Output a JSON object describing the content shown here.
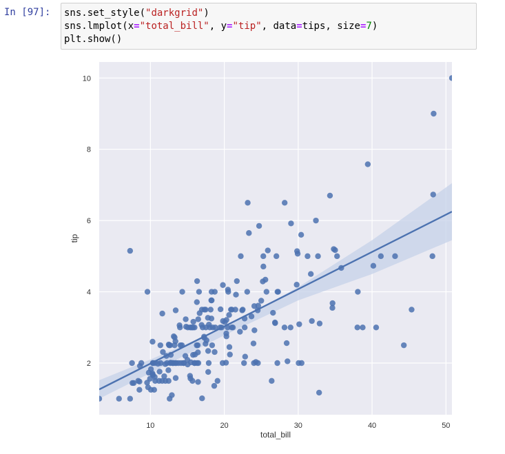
{
  "cell": {
    "prompt": "In [97]:",
    "code": {
      "line1": {
        "fn": "sns.set_style(",
        "arg": "\"darkgrid\"",
        "close": ")"
      },
      "line2": {
        "fn": "sns.lmplot(x",
        "eq": "=",
        "x_val": "\"total_bill\"",
        "sep1": ", y",
        "y_val": "\"tip\"",
        "sep2": ", data",
        "data_val": "tips",
        "sep3": ", size",
        "size_val": "7",
        "close": ")"
      },
      "line3": "plt.show()"
    }
  },
  "colors": {
    "plot_bg": "#eaeaf2",
    "grid": "#ffffff",
    "points": "#4c72b0",
    "line": "#4c72b0",
    "band": "#c6d2e8"
  },
  "chart_data": {
    "type": "scatter",
    "title": "",
    "xlabel": "total_bill",
    "ylabel": "tip",
    "xlim": [
      3.07,
      50.81
    ],
    "ylim": [
      0.55,
      10.45
    ],
    "xticks": [
      10,
      20,
      30,
      40,
      50
    ],
    "yticks": [
      2,
      4,
      6,
      8,
      10
    ],
    "grid": true,
    "regression": {
      "x": [
        3.07,
        50.81
      ],
      "y": [
        1.26,
        6.25
      ]
    },
    "confidence_band": {
      "x": [
        3.07,
        10,
        20,
        30,
        40,
        50.81
      ],
      "upper": [
        1.52,
        2.1,
        3.0,
        4.13,
        5.45,
        7.05
      ],
      "lower": [
        1.0,
        1.72,
        2.78,
        3.76,
        4.5,
        5.45
      ]
    },
    "points": [
      [
        3.07,
        1.0
      ],
      [
        5.75,
        1.0
      ],
      [
        7.25,
        1.0
      ],
      [
        7.25,
        5.15
      ],
      [
        7.51,
        2.0
      ],
      [
        7.56,
        1.44
      ],
      [
        7.74,
        1.44
      ],
      [
        8.35,
        1.5
      ],
      [
        8.51,
        1.25
      ],
      [
        8.52,
        1.48
      ],
      [
        8.58,
        1.92
      ],
      [
        8.77,
        2.0
      ],
      [
        9.55,
        1.45
      ],
      [
        9.6,
        4.0
      ],
      [
        9.68,
        1.32
      ],
      [
        9.78,
        1.73
      ],
      [
        9.94,
        1.56
      ],
      [
        10.07,
        1.25
      ],
      [
        10.07,
        1.83
      ],
      [
        10.27,
        1.71
      ],
      [
        10.29,
        2.6
      ],
      [
        10.33,
        1.67
      ],
      [
        10.33,
        2.0
      ],
      [
        10.34,
        1.66
      ],
      [
        10.34,
        2.0
      ],
      [
        10.51,
        1.25
      ],
      [
        10.59,
        1.61
      ],
      [
        10.63,
        2.0
      ],
      [
        10.65,
        1.5
      ],
      [
        11.02,
        1.98
      ],
      [
        11.17,
        1.5
      ],
      [
        11.24,
        1.76
      ],
      [
        11.35,
        2.5
      ],
      [
        11.38,
        2.0
      ],
      [
        11.59,
        1.5
      ],
      [
        11.61,
        3.39
      ],
      [
        11.69,
        2.31
      ],
      [
        11.87,
        1.63
      ],
      [
        12.02,
        1.97
      ],
      [
        12.03,
        1.5
      ],
      [
        12.16,
        2.2
      ],
      [
        12.26,
        2.0
      ],
      [
        12.43,
        1.8
      ],
      [
        12.46,
        1.5
      ],
      [
        12.48,
        2.52
      ],
      [
        12.54,
        2.5
      ],
      [
        12.6,
        1.0
      ],
      [
        12.66,
        2.5
      ],
      [
        12.69,
        2.0
      ],
      [
        12.74,
        2.01
      ],
      [
        12.76,
        2.23
      ],
      [
        12.9,
        1.1
      ],
      [
        13.0,
        2.0
      ],
      [
        13.03,
        2.0
      ],
      [
        13.13,
        2.0
      ],
      [
        13.16,
        2.75
      ],
      [
        13.27,
        2.5
      ],
      [
        13.28,
        2.72
      ],
      [
        13.37,
        2.0
      ],
      [
        13.39,
        2.61
      ],
      [
        13.42,
        1.58
      ],
      [
        13.42,
        3.48
      ],
      [
        13.51,
        2.0
      ],
      [
        13.81,
        2.0
      ],
      [
        13.94,
        3.06
      ],
      [
        14.0,
        3.0
      ],
      [
        14.07,
        2.5
      ],
      [
        14.15,
        2.0
      ],
      [
        14.26,
        2.5
      ],
      [
        14.31,
        4.0
      ],
      [
        14.48,
        2.0
      ],
      [
        14.52,
        2.0
      ],
      [
        14.73,
        2.2
      ],
      [
        14.78,
        3.23
      ],
      [
        14.83,
        3.02
      ],
      [
        15.01,
        2.09
      ],
      [
        15.04,
        1.96
      ],
      [
        15.06,
        3.0
      ],
      [
        15.36,
        1.64
      ],
      [
        15.38,
        3.0
      ],
      [
        15.42,
        1.57
      ],
      [
        15.48,
        2.02
      ],
      [
        15.53,
        3.0
      ],
      [
        15.69,
        1.5
      ],
      [
        15.69,
        3.0
      ],
      [
        15.77,
        2.23
      ],
      [
        15.81,
        3.16
      ],
      [
        15.95,
        2.0
      ],
      [
        15.98,
        3.0
      ],
      [
        16.0,
        2.0
      ],
      [
        16.04,
        2.24
      ],
      [
        16.27,
        2.5
      ],
      [
        16.29,
        3.71
      ],
      [
        16.31,
        2.0
      ],
      [
        16.32,
        4.3
      ],
      [
        16.4,
        2.5
      ],
      [
        16.43,
        2.3
      ],
      [
        16.45,
        1.47
      ],
      [
        16.47,
        3.23
      ],
      [
        16.49,
        2.0
      ],
      [
        16.58,
        4.0
      ],
      [
        16.66,
        3.4
      ],
      [
        16.93,
        3.07
      ],
      [
        16.97,
        3.5
      ],
      [
        16.99,
        1.01
      ],
      [
        17.07,
        3.0
      ],
      [
        17.26,
        2.74
      ],
      [
        17.29,
        2.71
      ],
      [
        17.31,
        3.5
      ],
      [
        17.46,
        2.54
      ],
      [
        17.47,
        3.5
      ],
      [
        17.51,
        3.0
      ],
      [
        17.59,
        2.64
      ],
      [
        17.78,
        3.27
      ],
      [
        17.81,
        2.34
      ],
      [
        17.82,
        1.75
      ],
      [
        17.89,
        2.0
      ],
      [
        17.92,
        3.08
      ],
      [
        18.04,
        3.0
      ],
      [
        18.15,
        3.5
      ],
      [
        18.24,
        3.76
      ],
      [
        18.26,
        3.25
      ],
      [
        18.28,
        4.0
      ],
      [
        18.29,
        3.76
      ],
      [
        18.35,
        2.5
      ],
      [
        18.43,
        3.0
      ],
      [
        18.64,
        1.36
      ],
      [
        18.69,
        2.31
      ],
      [
        18.71,
        4.0
      ],
      [
        18.78,
        3.0
      ],
      [
        19.08,
        1.5
      ],
      [
        19.44,
        3.0
      ],
      [
        19.49,
        3.51
      ],
      [
        19.65,
        3.0
      ],
      [
        19.77,
        2.0
      ],
      [
        19.81,
        4.19
      ],
      [
        19.82,
        3.18
      ],
      [
        20.08,
        3.15
      ],
      [
        20.23,
        2.01
      ],
      [
        20.27,
        2.83
      ],
      [
        20.29,
        2.75
      ],
      [
        20.29,
        3.21
      ],
      [
        20.45,
        3.0
      ],
      [
        20.49,
        4.06
      ],
      [
        20.53,
        4.0
      ],
      [
        20.65,
        3.35
      ],
      [
        20.69,
        2.45
      ],
      [
        20.76,
        2.24
      ],
      [
        20.9,
        3.5
      ],
      [
        21.01,
        3.5
      ],
      [
        21.01,
        3.0
      ],
      [
        21.16,
        3.0
      ],
      [
        21.5,
        3.5
      ],
      [
        21.58,
        3.92
      ],
      [
        21.7,
        4.3
      ],
      [
        22.12,
        2.88
      ],
      [
        22.23,
        5.0
      ],
      [
        22.42,
        3.48
      ],
      [
        22.49,
        3.5
      ],
      [
        22.67,
        2.0
      ],
      [
        22.75,
        3.25
      ],
      [
        22.76,
        3.0
      ],
      [
        22.82,
        2.18
      ],
      [
        23.1,
        4.0
      ],
      [
        23.17,
        6.5
      ],
      [
        23.33,
        5.65
      ],
      [
        23.68,
        3.31
      ],
      [
        23.95,
        2.55
      ],
      [
        24.01,
        2.0
      ],
      [
        24.06,
        3.6
      ],
      [
        24.08,
        2.92
      ],
      [
        24.27,
        2.03
      ],
      [
        24.52,
        3.48
      ],
      [
        24.55,
        2.0
      ],
      [
        24.59,
        3.61
      ],
      [
        24.71,
        5.85
      ],
      [
        25.0,
        3.75
      ],
      [
        25.21,
        4.29
      ],
      [
        25.28,
        5.0
      ],
      [
        25.29,
        4.71
      ],
      [
        25.56,
        4.34
      ],
      [
        25.71,
        4.0
      ],
      [
        25.89,
        5.16
      ],
      [
        26.41,
        1.5
      ],
      [
        26.59,
        3.41
      ],
      [
        26.86,
        3.14
      ],
      [
        26.88,
        3.12
      ],
      [
        27.05,
        5.0
      ],
      [
        27.18,
        2.0
      ],
      [
        27.2,
        4.0
      ],
      [
        27.28,
        4.0
      ],
      [
        28.15,
        3.0
      ],
      [
        28.17,
        6.5
      ],
      [
        28.44,
        2.56
      ],
      [
        28.55,
        2.05
      ],
      [
        28.97,
        3.0
      ],
      [
        29.03,
        5.92
      ],
      [
        29.8,
        4.2
      ],
      [
        29.85,
        5.14
      ],
      [
        29.93,
        5.07
      ],
      [
        30.06,
        2.0
      ],
      [
        30.14,
        3.09
      ],
      [
        30.4,
        5.6
      ],
      [
        30.46,
        2.0
      ],
      [
        31.27,
        5.0
      ],
      [
        31.71,
        4.5
      ],
      [
        31.85,
        3.18
      ],
      [
        32.4,
        6.0
      ],
      [
        32.68,
        5.0
      ],
      [
        32.83,
        1.17
      ],
      [
        32.9,
        3.11
      ],
      [
        34.3,
        6.7
      ],
      [
        34.63,
        3.55
      ],
      [
        34.65,
        3.68
      ],
      [
        34.81,
        5.2
      ],
      [
        35.26,
        5.0
      ],
      [
        35.83,
        4.67
      ],
      [
        38.01,
        3.0
      ],
      [
        38.07,
        4.0
      ],
      [
        38.73,
        3.0
      ],
      [
        39.42,
        7.58
      ],
      [
        40.17,
        4.73
      ],
      [
        40.55,
        3.0
      ],
      [
        41.19,
        5.0
      ],
      [
        43.11,
        5.0
      ],
      [
        44.3,
        2.5
      ],
      [
        45.35,
        3.5
      ],
      [
        48.17,
        5.0
      ],
      [
        48.27,
        6.73
      ],
      [
        48.33,
        9.0
      ],
      [
        50.81,
        10.0
      ],
      [
        35.0,
        5.17
      ],
      [
        15.77,
        3.0
      ]
    ]
  }
}
